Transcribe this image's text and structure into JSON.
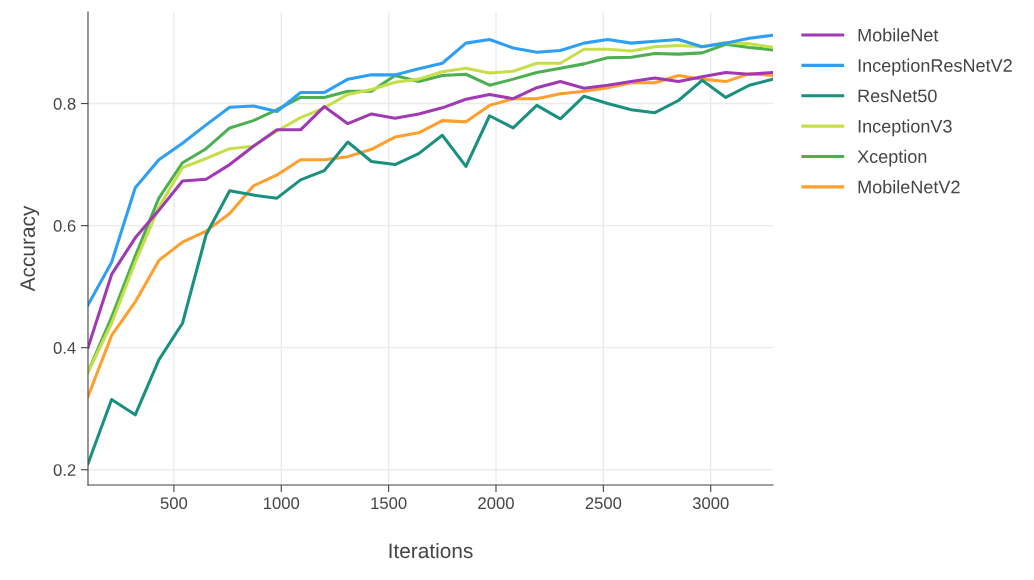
{
  "chart_data": {
    "type": "line",
    "xlabel": "Iterations",
    "ylabel": "Accuracy",
    "x": [
      100,
      210,
      320,
      430,
      540,
      650,
      760,
      870,
      980,
      1090,
      1200,
      1310,
      1420,
      1530,
      1640,
      1750,
      1860,
      1970,
      2080,
      2190,
      2300,
      2410,
      2520,
      2630,
      2740,
      2850,
      2960,
      3070,
      3180,
      3290
    ],
    "series": [
      {
        "name": "MobileNet",
        "color": "#a03ab4",
        "values": [
          0.4,
          0.52,
          0.58,
          0.625,
          0.673,
          0.676,
          0.7,
          0.73,
          0.757,
          0.757,
          0.795,
          0.767,
          0.783,
          0.776,
          0.783,
          0.793,
          0.807,
          0.815,
          0.808,
          0.826,
          0.836,
          0.825,
          0.83,
          0.836,
          0.842,
          0.836,
          0.844,
          0.851,
          0.848,
          0.851
        ]
      },
      {
        "name": "InceptionResNetV2",
        "color": "#2f9ff5",
        "values": [
          0.47,
          0.54,
          0.662,
          0.708,
          0.735,
          0.765,
          0.794,
          0.796,
          0.787,
          0.818,
          0.818,
          0.84,
          0.847,
          0.847,
          0.857,
          0.866,
          0.899,
          0.905,
          0.891,
          0.884,
          0.887,
          0.899,
          0.905,
          0.899,
          0.902,
          0.905,
          0.893,
          0.899,
          0.907,
          0.912
        ]
      },
      {
        "name": "ResNet50",
        "color": "#1a9080",
        "values": [
          0.21,
          0.315,
          0.29,
          0.38,
          0.44,
          0.585,
          0.657,
          0.65,
          0.645,
          0.675,
          0.69,
          0.737,
          0.705,
          0.7,
          0.718,
          0.748,
          0.697,
          0.78,
          0.76,
          0.797,
          0.775,
          0.812,
          0.8,
          0.79,
          0.785,
          0.805,
          0.838,
          0.81,
          0.83,
          0.84
        ]
      },
      {
        "name": "InceptionV3",
        "color": "#c5df4a",
        "values": [
          0.36,
          0.44,
          0.54,
          0.63,
          0.695,
          0.71,
          0.726,
          0.73,
          0.755,
          0.777,
          0.793,
          0.815,
          0.823,
          0.835,
          0.84,
          0.852,
          0.858,
          0.85,
          0.853,
          0.866,
          0.866,
          0.889,
          0.889,
          0.886,
          0.893,
          0.895,
          0.893,
          0.9,
          0.898,
          0.892
        ]
      },
      {
        "name": "Xception",
        "color": "#4caf50",
        "values": [
          0.36,
          0.45,
          0.55,
          0.645,
          0.703,
          0.726,
          0.76,
          0.772,
          0.79,
          0.81,
          0.81,
          0.82,
          0.82,
          0.846,
          0.836,
          0.846,
          0.848,
          0.83,
          0.84,
          0.851,
          0.858,
          0.865,
          0.875,
          0.876,
          0.882,
          0.881,
          0.883,
          0.897,
          0.892,
          0.888
        ]
      },
      {
        "name": "MobileNetV2",
        "color": "#ff9f2e",
        "values": [
          0.32,
          0.42,
          0.475,
          0.543,
          0.573,
          0.591,
          0.62,
          0.665,
          0.683,
          0.708,
          0.708,
          0.713,
          0.725,
          0.745,
          0.752,
          0.772,
          0.77,
          0.797,
          0.808,
          0.808,
          0.816,
          0.82,
          0.826,
          0.834,
          0.834,
          0.846,
          0.84,
          0.836,
          0.849,
          0.846
        ]
      }
    ],
    "xlim": [
      100,
      3290
    ],
    "ylim": [
      0.175,
      0.95
    ],
    "xticks": [
      500,
      1000,
      1500,
      2000,
      2500,
      3000
    ],
    "yticks": [
      0.2,
      0.4,
      0.6,
      0.8
    ],
    "grid": true,
    "legend": "top right",
    "marker": "none",
    "line_style": "solid"
  }
}
